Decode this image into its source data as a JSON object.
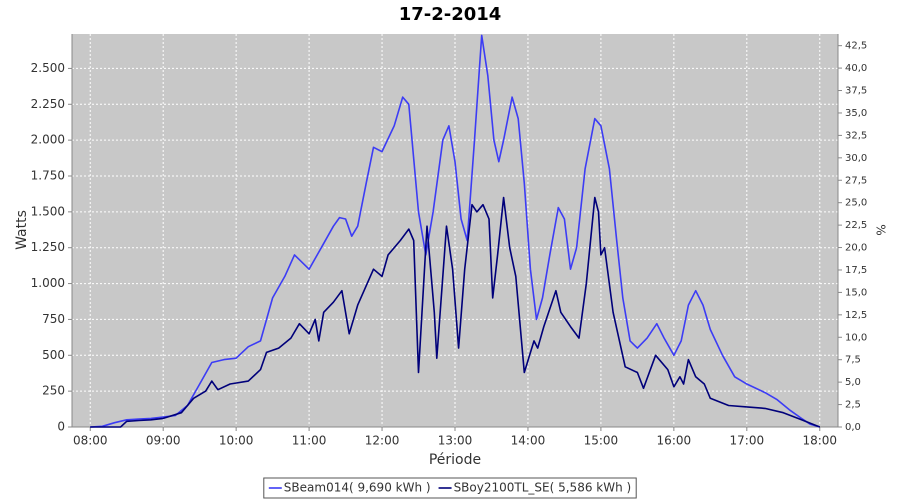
{
  "chart_data": {
    "type": "line",
    "title": "17-2-2014",
    "x_label": "Période",
    "y_label": "Watts",
    "y2_label": "%",
    "xlim": [
      465,
      1095
    ],
    "xticks": [
      {
        "value": 480,
        "label": "08:00"
      },
      {
        "value": 540,
        "label": "09:00"
      },
      {
        "value": 600,
        "label": "10:00"
      },
      {
        "value": 660,
        "label": "11:00"
      },
      {
        "value": 720,
        "label": "12:00"
      },
      {
        "value": 780,
        "label": "13:00"
      },
      {
        "value": 840,
        "label": "14:00"
      },
      {
        "value": 900,
        "label": "15:00"
      },
      {
        "value": 960,
        "label": "16:00"
      },
      {
        "value": 1020,
        "label": "17:00"
      },
      {
        "value": 1080,
        "label": "18:00"
      }
    ],
    "ylim": [
      0,
      2740
    ],
    "yticks": [
      0,
      250,
      500,
      750,
      {
        "value": 1000,
        "label": "1.000"
      },
      {
        "value": 1250,
        "label": "1.250"
      },
      {
        "value": 1500,
        "label": "1.500"
      },
      {
        "value": 1750,
        "label": "1.750"
      },
      {
        "value": 2000,
        "label": "2.000"
      },
      {
        "value": 2250,
        "label": "2.250"
      },
      {
        "value": 2500,
        "label": "2.500"
      }
    ],
    "y2lim": [
      0,
      43.8
    ],
    "y2ticks": [
      {
        "value": 0,
        "label": "0,0"
      },
      {
        "value": 2.5,
        "label": "2,5"
      },
      {
        "value": 5,
        "label": "5,0"
      },
      {
        "value": 7.5,
        "label": "7,5"
      },
      {
        "value": 10,
        "label": "10,0"
      },
      {
        "value": 12.5,
        "label": "12,5"
      },
      {
        "value": 15,
        "label": "15,0"
      },
      {
        "value": 17.5,
        "label": "17,5"
      },
      {
        "value": 20,
        "label": "20,0"
      },
      {
        "value": 22.5,
        "label": "22,5"
      },
      {
        "value": 25,
        "label": "25,0"
      },
      {
        "value": 27.5,
        "label": "27,5"
      },
      {
        "value": 30,
        "label": "30,0"
      },
      {
        "value": 32.5,
        "label": "32,5"
      },
      {
        "value": 35,
        "label": "35,0"
      },
      {
        "value": 37.5,
        "label": "37,5"
      },
      {
        "value": 40,
        "label": "40,0"
      },
      {
        "value": 42.5,
        "label": "42,5"
      }
    ],
    "grid": true,
    "legend": "bottom",
    "series": [
      {
        "name": "SBeam014( 9,690 kWh )",
        "color": "#3c3cf5",
        "x": [
          480,
          490,
          500,
          510,
          520,
          530,
          540,
          550,
          560,
          570,
          580,
          590,
          600,
          610,
          620,
          630,
          640,
          648,
          660,
          670,
          680,
          685,
          690,
          695,
          700,
          707,
          713,
          720,
          730,
          737,
          742,
          750,
          756,
          762,
          770,
          775,
          780,
          785,
          790,
          796,
          802,
          807,
          812,
          816,
          820,
          827,
          832,
          837,
          842,
          847,
          852,
          858,
          865,
          870,
          875,
          880,
          887,
          895,
          900,
          907,
          913,
          918,
          924,
          930,
          938,
          946,
          952,
          960,
          966,
          972,
          978,
          984,
          990,
          1000,
          1010,
          1020,
          1035,
          1045,
          1055,
          1065,
          1072,
          1080
        ],
        "values": [
          0,
          5,
          30,
          50,
          55,
          60,
          70,
          80,
          150,
          300,
          450,
          470,
          480,
          560,
          600,
          900,
          1050,
          1200,
          1100,
          1250,
          1400,
          1460,
          1450,
          1330,
          1400,
          1700,
          1950,
          1920,
          2100,
          2300,
          2250,
          1500,
          1200,
          1500,
          2000,
          2100,
          1850,
          1450,
          1300,
          2000,
          2730,
          2450,
          2000,
          1850,
          2000,
          2300,
          2150,
          1700,
          1100,
          750,
          900,
          1200,
          1530,
          1450,
          1100,
          1250,
          1800,
          2150,
          2100,
          1800,
          1300,
          900,
          600,
          550,
          620,
          720,
          620,
          500,
          600,
          850,
          950,
          850,
          680,
          500,
          350,
          300,
          240,
          190,
          120,
          60,
          20,
          0
        ]
      },
      {
        "name": "SBoy2100TL_SE( 5,586 kWh )",
        "color": "#00007a",
        "x": [
          480,
          505,
          510,
          520,
          530,
          540,
          555,
          565,
          575,
          580,
          585,
          595,
          610,
          620,
          625,
          635,
          645,
          652,
          660,
          665,
          668,
          672,
          680,
          687,
          693,
          700,
          713,
          720,
          725,
          735,
          742,
          746,
          750,
          757,
          763,
          765,
          773,
          778,
          783,
          788,
          794,
          798,
          803,
          808,
          811,
          815,
          820,
          825,
          830,
          837,
          845,
          848,
          853,
          863,
          867,
          875,
          882,
          888,
          895,
          898,
          900,
          903,
          910,
          920,
          930,
          935,
          945,
          955,
          960,
          965,
          968,
          972,
          978,
          985,
          990,
          1005,
          1020,
          1035,
          1050,
          1065,
          1080
        ],
        "values": [
          0,
          0,
          40,
          45,
          50,
          60,
          100,
          200,
          250,
          320,
          260,
          300,
          320,
          400,
          520,
          550,
          620,
          720,
          650,
          750,
          600,
          800,
          870,
          950,
          650,
          850,
          1100,
          1050,
          1200,
          1300,
          1380,
          1300,
          380,
          1400,
          800,
          480,
          1400,
          1100,
          550,
          1100,
          1550,
          1500,
          1550,
          1450,
          900,
          1200,
          1600,
          1250,
          1050,
          380,
          600,
          550,
          700,
          950,
          800,
          700,
          620,
          1000,
          1600,
          1500,
          1200,
          1250,
          800,
          420,
          380,
          270,
          500,
          400,
          280,
          350,
          300,
          470,
          350,
          300,
          200,
          150,
          140,
          130,
          100,
          50,
          0
        ]
      }
    ]
  }
}
